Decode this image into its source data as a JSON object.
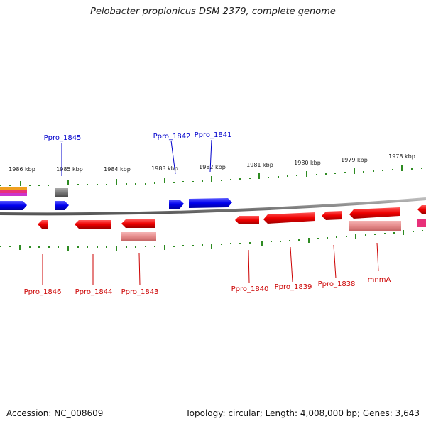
{
  "title": "Pelobacter propionicus DSM 2379, complete genome",
  "footer": {
    "accession": "Accession: NC_008609",
    "summary": "Topology: circular; Length: 4,008,000 bp; Genes: 3,643"
  },
  "colors": {
    "backbone": "#8a8a8a",
    "forward_gene": "#0000ee",
    "reverse_gene": "#ee0000",
    "forward_label": "#0000cc",
    "reverse_label": "#cc0000",
    "tick": "#2e8b22",
    "rna_pale": "#e58a8a",
    "grey_feature": "#777777"
  },
  "scale_ticks": [
    {
      "label": "1986 kbp"
    },
    {
      "label": "1985 kbp"
    },
    {
      "label": "1984 kbp"
    },
    {
      "label": "1983 kbp"
    },
    {
      "label": "1982 kbp"
    },
    {
      "label": "1981 kbp"
    },
    {
      "label": "1980 kbp"
    },
    {
      "label": "1979 kbp"
    },
    {
      "label": "1978 kbp"
    }
  ],
  "forward_labels": [
    {
      "name": "Ppro_1845"
    },
    {
      "name": "Ppro_1842"
    },
    {
      "name": "Ppro_1841"
    }
  ],
  "reverse_labels": [
    {
      "name": "Ppro_1846"
    },
    {
      "name": "Ppro_1844"
    },
    {
      "name": "Ppro_1843"
    },
    {
      "name": "Ppro_1840"
    },
    {
      "name": "Ppro_1839"
    },
    {
      "name": "Ppro_1838"
    },
    {
      "name": "mnmA"
    }
  ]
}
